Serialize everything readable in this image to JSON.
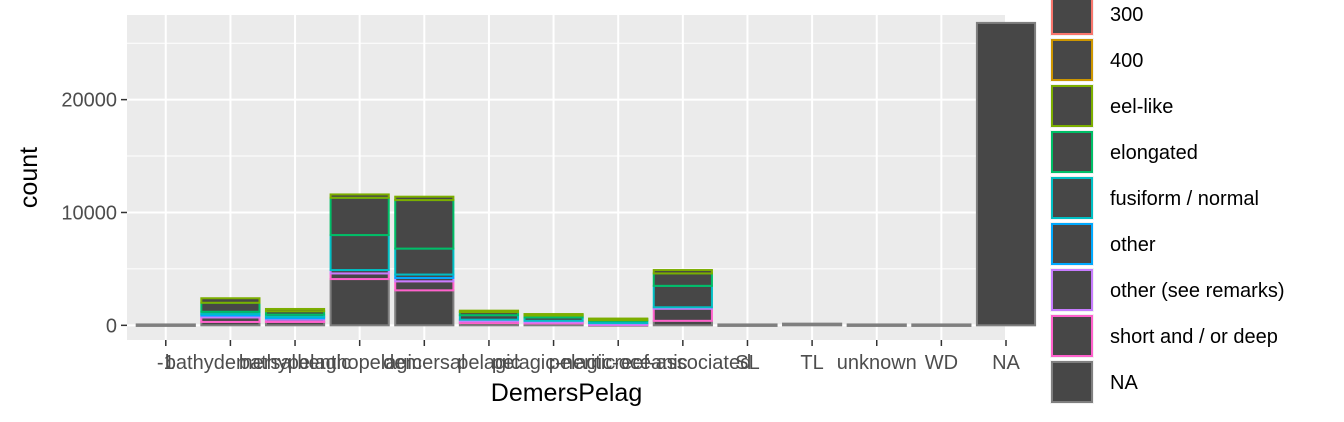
{
  "chart_data": {
    "type": "bar",
    "stacked": true,
    "xlabel": "DemersPelag",
    "ylabel": "count",
    "ylim": [
      -1300,
      27500
    ],
    "yticks": [
      0,
      10000,
      20000
    ],
    "ytick_labels": [
      "0",
      "10000",
      "20000"
    ],
    "categories": [
      "-1",
      "bathydemersal",
      "bathypelagic",
      "benthopelagic",
      "demersal",
      "pelagic",
      "pelagic-neritic",
      "pelagic-oceanic",
      "reef-associated",
      "SL",
      "TL",
      "unknown",
      "WD",
      "NA"
    ],
    "tick_labels": [
      "-1",
      "bathydemersal",
      "bathypelagic",
      "benthopelagic",
      "demersal",
      "pelagic",
      "pelagic-neritic",
      "pelagic-oceanic",
      "reef-associated",
      "SL",
      "TL",
      "unknown",
      "WD",
      "NA"
    ],
    "series": [
      {
        "name": "300",
        "color": "#F8766D",
        "values": [
          0,
          0,
          0,
          0,
          0,
          0,
          0,
          0,
          0,
          0,
          0,
          0,
          0,
          0
        ]
      },
      {
        "name": "400",
        "color": "#CD9600",
        "values": [
          0,
          0,
          0,
          0,
          0,
          0,
          0,
          0,
          0,
          0,
          0,
          0,
          0,
          0
        ]
      },
      {
        "name": "eel-like",
        "color": "#7CAE00",
        "values": [
          0,
          400,
          200,
          300,
          300,
          100,
          100,
          50,
          300,
          0,
          0,
          0,
          0,
          0
        ]
      },
      {
        "name": "elongated",
        "color": "#00BE67",
        "values": [
          0,
          800,
          300,
          3300,
          4300,
          300,
          200,
          150,
          1100,
          0,
          0,
          0,
          0,
          0
        ]
      },
      {
        "name": "fusiform / normal",
        "color": "#00BFC4",
        "values": [
          0,
          200,
          200,
          3100,
          2300,
          400,
          300,
          200,
          1900,
          0,
          0,
          0,
          0,
          0
        ]
      },
      {
        "name": "other",
        "color": "#00A9FF",
        "values": [
          0,
          100,
          50,
          0,
          300,
          0,
          0,
          0,
          0,
          0,
          0,
          0,
          0,
          0
        ]
      },
      {
        "name": "other (see remarks)",
        "color": "#C77CFF",
        "values": [
          0,
          200,
          200,
          300,
          300,
          100,
          100,
          50,
          100,
          0,
          0,
          0,
          0,
          0
        ]
      },
      {
        "name": "short and / or deep",
        "color": "#FF61CC",
        "values": [
          0,
          400,
          200,
          500,
          800,
          200,
          100,
          50,
          1100,
          0,
          0,
          0,
          0,
          0
        ]
      },
      {
        "name": "NA",
        "color": "#7F7F7F",
        "values": [
          80,
          300,
          300,
          4100,
          3100,
          200,
          200,
          100,
          400,
          80,
          150,
          80,
          80,
          26800
        ]
      }
    ],
    "grid": true,
    "legend_position": "right"
  }
}
